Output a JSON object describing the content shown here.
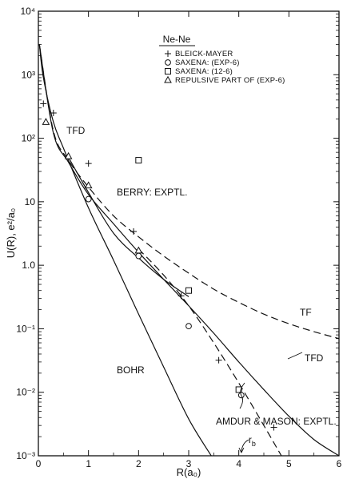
{
  "chart_data": {
    "type": "line",
    "title": "Ne-Ne",
    "xlabel": "R(a₀)",
    "ylabel": "U(R), e²/a₀",
    "xlim": [
      0,
      6
    ],
    "ylim": [
      0.001,
      10000
    ],
    "y_scale": "log",
    "grid": false,
    "legend_position": "top-right",
    "x_ticks": [
      "0",
      "1",
      "2",
      "3",
      "4",
      "5",
      "6"
    ],
    "y_ticks": [
      {
        "value": 10000,
        "label": "10⁴"
      },
      {
        "value": 1000,
        "label": "10³"
      },
      {
        "value": 100,
        "label": "10²"
      },
      {
        "value": 10,
        "label": "10"
      },
      {
        "value": 1,
        "label": "1.0"
      },
      {
        "value": 0.1,
        "label": "10⁻¹"
      },
      {
        "value": 0.01,
        "label": "10⁻²"
      },
      {
        "value": 0.001,
        "label": "10⁻³"
      }
    ],
    "legend": [
      {
        "marker": "plus",
        "label": "BLEICK-MAYER"
      },
      {
        "marker": "circle",
        "label": "SAXENA: (EXP-6)"
      },
      {
        "marker": "square",
        "label": "SAXENA: (12-6)"
      },
      {
        "marker": "triangle",
        "label": "REPULSIVE PART OF (EXP-6)"
      }
    ],
    "lines": [
      {
        "label": "BOHR",
        "style": "solid",
        "x": [
          0.02,
          0.1,
          0.3,
          0.5,
          1.0,
          1.5,
          2.0,
          2.5,
          3.0,
          3.45
        ],
        "y": [
          3000,
          900,
          180,
          70,
          8,
          1.2,
          0.17,
          0.025,
          0.0038,
          0.001
        ]
      },
      {
        "label": "TF",
        "style": "dashed",
        "x": [
          0.02,
          0.3,
          0.6,
          1.0,
          1.5,
          2.0,
          2.5,
          3.0,
          3.5,
          4.0,
          4.5,
          5.0,
          5.5,
          6.0
        ],
        "y": [
          3000,
          130,
          45,
          17,
          6,
          2.8,
          1.4,
          0.75,
          0.42,
          0.26,
          0.17,
          0.12,
          0.09,
          0.07
        ]
      },
      {
        "label": "TFD",
        "style": "solid",
        "x": [
          0.02,
          0.3,
          0.6,
          1.0,
          1.5,
          2.0,
          2.5,
          3.0,
          3.5,
          4.0,
          4.5,
          5.0,
          5.5,
          6.0
        ],
        "y": [
          3000,
          120,
          42,
          13,
          4.5,
          1.6,
          0.6,
          0.23,
          0.085,
          0.03,
          0.011,
          0.0042,
          0.0018,
          0.001
        ]
      },
      {
        "label": "BERRY: EXPTL.",
        "style": "solid",
        "x": [
          0.6,
          1.0,
          1.5,
          2.0,
          2.5,
          3.0
        ],
        "y": [
          50,
          14,
          3.2,
          1.3,
          0.6,
          0.32
        ]
      },
      {
        "label": "AMDUR & MASON: EXPTL.",
        "style": "dashed",
        "x": [
          2.0,
          2.5,
          3.0,
          3.5,
          4.0,
          4.5,
          4.85
        ],
        "y": [
          1.8,
          0.7,
          0.23,
          0.06,
          0.014,
          0.003,
          0.001
        ]
      }
    ],
    "points": [
      {
        "series": "BLEICK-MAYER",
        "marker": "plus",
        "x": [
          0.1,
          0.3,
          1.0,
          1.9,
          2.85,
          3.6,
          4.7
        ],
        "y": [
          350,
          250,
          40,
          3.4,
          0.33,
          0.032,
          0.0028
        ]
      },
      {
        "series": "SAXENA: (EXP-6)",
        "marker": "circle",
        "x": [
          1.0,
          2.0,
          3.0,
          4.05
        ],
        "y": [
          11,
          1.4,
          0.11,
          0.009
        ]
      },
      {
        "series": "SAXENA: (12-6)",
        "marker": "square",
        "x": [
          2.0,
          3.0,
          4.0
        ],
        "y": [
          45,
          0.4,
          0.011
        ]
      },
      {
        "series": "REPULSIVE PART OF (EXP-6)",
        "marker": "triangle",
        "x": [
          0.15,
          0.6,
          1.0,
          2.0
        ],
        "y": [
          180,
          52,
          18,
          1.7
        ]
      }
    ],
    "annotations": [
      {
        "text": "r",
        "sub": "b",
        "x": 4.1,
        "y": 0.0015
      }
    ]
  }
}
